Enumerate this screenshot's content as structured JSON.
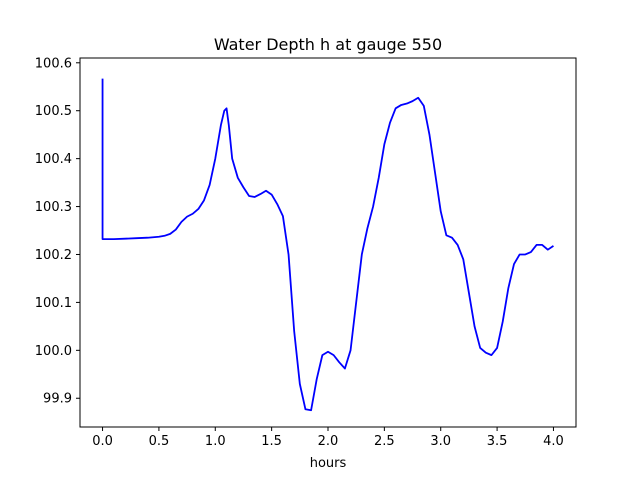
{
  "chart_data": {
    "type": "line",
    "title": "Water Depth h at gauge 550",
    "xlabel": "hours",
    "ylabel": "",
    "xlim": [
      -0.2,
      4.2
    ],
    "ylim": [
      99.84,
      100.61
    ],
    "xticks": [
      0.0,
      0.5,
      1.0,
      1.5,
      2.0,
      2.5,
      3.0,
      3.5,
      4.0
    ],
    "xtick_labels": [
      "0.0",
      "0.5",
      "1.0",
      "1.5",
      "2.0",
      "2.5",
      "3.0",
      "3.5",
      "4.0"
    ],
    "yticks": [
      99.9,
      100.0,
      100.1,
      100.2,
      100.3,
      100.4,
      100.5,
      100.6
    ],
    "ytick_labels": [
      "99.9",
      "100.0",
      "100.1",
      "100.2",
      "100.3",
      "100.4",
      "100.5",
      "100.6"
    ],
    "grid": false,
    "series": [
      {
        "color": "#0000ff",
        "x": [
          0.0,
          0.0,
          0.0,
          0.1,
          0.2,
          0.3,
          0.4,
          0.5,
          0.55,
          0.6,
          0.65,
          0.7,
          0.75,
          0.8,
          0.85,
          0.9,
          0.95,
          1.0,
          1.05,
          1.08,
          1.1,
          1.12,
          1.15,
          1.2,
          1.25,
          1.3,
          1.35,
          1.4,
          1.45,
          1.5,
          1.55,
          1.6,
          1.65,
          1.7,
          1.75,
          1.8,
          1.85,
          1.9,
          1.95,
          2.0,
          2.05,
          2.1,
          2.15,
          2.2,
          2.25,
          2.3,
          2.35,
          2.4,
          2.45,
          2.5,
          2.55,
          2.6,
          2.65,
          2.7,
          2.75,
          2.8,
          2.85,
          2.9,
          2.95,
          3.0,
          3.05,
          3.1,
          3.15,
          3.2,
          3.25,
          3.3,
          3.35,
          3.4,
          3.45,
          3.5,
          3.55,
          3.6,
          3.65,
          3.7,
          3.75,
          3.8,
          3.85,
          3.9,
          3.95,
          4.0
        ],
        "y": [
          100.567,
          100.232,
          100.232,
          100.232,
          100.233,
          100.234,
          100.235,
          100.237,
          100.239,
          100.243,
          100.252,
          100.268,
          100.279,
          100.285,
          100.295,
          100.313,
          100.345,
          100.4,
          100.47,
          100.5,
          100.505,
          100.47,
          100.4,
          100.36,
          100.34,
          100.322,
          100.32,
          100.326,
          100.333,
          100.325,
          100.305,
          100.28,
          100.2,
          100.04,
          99.93,
          99.877,
          99.875,
          99.94,
          99.99,
          99.997,
          99.99,
          99.975,
          99.962,
          100.0,
          100.1,
          100.2,
          100.255,
          100.3,
          100.36,
          100.43,
          100.475,
          100.505,
          100.512,
          100.515,
          100.52,
          100.527,
          100.51,
          100.45,
          100.37,
          100.29,
          100.24,
          100.235,
          100.22,
          100.19,
          100.12,
          100.05,
          100.005,
          99.995,
          99.99,
          100.005,
          100.06,
          100.13,
          100.18,
          100.2,
          100.2,
          100.205,
          100.22,
          100.22,
          100.21,
          100.218
        ]
      }
    ]
  }
}
